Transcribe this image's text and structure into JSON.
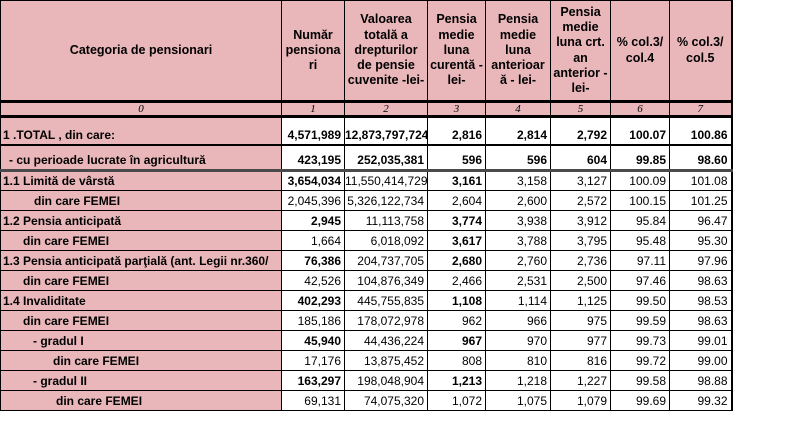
{
  "colors": {
    "pink": "#e9b6ba",
    "border": "#000000",
    "cell_bg": "#ffffff",
    "text": "#000000"
  },
  "table": {
    "columns": [
      {
        "label": "Categoria de pensionari",
        "index": "0"
      },
      {
        "label": "Număr pensionari",
        "index": "1"
      },
      {
        "label": "Valoarea totală a drepturilor de pensie cuvenite -lei-",
        "index": "2"
      },
      {
        "label": "Pensia medie luna curentă -lei-",
        "index": "3"
      },
      {
        "label": "Pensia medie luna anterioară - lei-",
        "index": "4"
      },
      {
        "label": "Pensia medie luna crt. an anterior -lei-",
        "index": "5"
      },
      {
        "label": "%  col.3/ col.4",
        "index": "6"
      },
      {
        "label": "%  col.3/ col.5",
        "index": "7"
      }
    ],
    "rows": [
      {
        "label": "1 .TOTAL , din care:",
        "indent": 2,
        "row_class": "row-total",
        "values": [
          "4,571,989",
          "12,873,797,724",
          "2,816",
          "2,814",
          "2,792",
          "100.07",
          "100.86"
        ],
        "bold": [
          1,
          1,
          1,
          1,
          1,
          1,
          1
        ]
      },
      {
        "label": "- cu perioade lucrate în agricultură",
        "indent": 8,
        "row_class": "row-agri",
        "values": [
          "423,195",
          "252,035,381",
          "596",
          "596",
          "604",
          "99.85",
          "98.60"
        ],
        "bold": [
          1,
          1,
          1,
          1,
          1,
          1,
          1
        ]
      },
      {
        "label": "1.1  Limită de vârstă",
        "indent": 2,
        "row_class": "",
        "values": [
          "3,654,034",
          "11,550,414,729",
          "3,161",
          "3,158",
          "3,127",
          "100.09",
          "101.08"
        ],
        "bold": [
          1,
          0,
          1,
          0,
          0,
          0,
          0
        ]
      },
      {
        "label": "din care  FEMEI",
        "indent": 33,
        "row_class": "",
        "values": [
          "2,045,396",
          "5,326,122,734",
          "2,604",
          "2,600",
          "2,572",
          "100.15",
          "101.25"
        ],
        "bold": [
          0,
          0,
          0,
          0,
          0,
          0,
          0
        ]
      },
      {
        "label": "1.2 Pensia anticipată",
        "indent": 2,
        "row_class": "",
        "values": [
          "2,945",
          "11,113,758",
          "3,774",
          "3,938",
          "3,912",
          "95.84",
          "96.47"
        ],
        "bold": [
          1,
          0,
          1,
          0,
          0,
          0,
          0
        ]
      },
      {
        "label": "din care  FEMEI",
        "indent": 22,
        "row_class": "",
        "values": [
          "1,664",
          "6,018,092",
          "3,617",
          "3,788",
          "3,795",
          "95.48",
          "95.30"
        ],
        "bold": [
          0,
          0,
          1,
          0,
          0,
          0,
          0
        ]
      },
      {
        "label": "1.3 Pensia anticipată parţială (ant. Legii nr.360/",
        "indent": 2,
        "row_class": "",
        "values": [
          "76,386",
          "204,737,705",
          "2,680",
          "2,760",
          "2,736",
          "97.11",
          "97.96"
        ],
        "bold": [
          1,
          0,
          1,
          0,
          0,
          0,
          0
        ]
      },
      {
        "label": "din care  FEMEI",
        "indent": 22,
        "row_class": "",
        "values": [
          "42,526",
          "104,876,349",
          "2,466",
          "2,531",
          "2,500",
          "97.46",
          "98.63"
        ],
        "bold": [
          0,
          0,
          0,
          0,
          0,
          0,
          0
        ]
      },
      {
        "label": "1.4  Invaliditate",
        "indent": 2,
        "row_class": "",
        "values": [
          "402,293",
          "445,755,835",
          "1,108",
          "1,114",
          "1,125",
          "99.50",
          "98.53"
        ],
        "bold": [
          1,
          0,
          1,
          0,
          0,
          0,
          0
        ]
      },
      {
        "label": "din care  FEMEI",
        "indent": 22,
        "row_class": "",
        "values": [
          "185,186",
          "178,072,978",
          "962",
          "966",
          "975",
          "99.59",
          "98.63"
        ],
        "bold": [
          0,
          0,
          0,
          0,
          0,
          0,
          0
        ]
      },
      {
        "label": "- gradul   I",
        "indent": 32,
        "row_class": "",
        "values": [
          "45,940",
          "44,436,224",
          "967",
          "970",
          "977",
          "99.73",
          "99.01"
        ],
        "bold": [
          1,
          0,
          1,
          0,
          0,
          0,
          0
        ]
      },
      {
        "label": "din care  FEMEI",
        "indent": 52,
        "row_class": "",
        "values": [
          "17,176",
          "13,875,452",
          "808",
          "810",
          "816",
          "99.72",
          "99.00"
        ],
        "bold": [
          0,
          0,
          0,
          0,
          0,
          0,
          0
        ]
      },
      {
        "label": "- gradul  II",
        "indent": 32,
        "row_class": "",
        "values": [
          "163,297",
          "198,048,904",
          "1,213",
          "1,218",
          "1,227",
          "99.58",
          "98.88"
        ],
        "bold": [
          1,
          0,
          1,
          0,
          0,
          0,
          0
        ]
      },
      {
        "label": "din care  FEMEI",
        "indent": 55,
        "row_class": "",
        "values": [
          "69,131",
          "74,075,320",
          "1,072",
          "1,075",
          "1,079",
          "99.69",
          "99.32"
        ],
        "bold": [
          0,
          0,
          0,
          0,
          0,
          0,
          0
        ]
      }
    ]
  }
}
